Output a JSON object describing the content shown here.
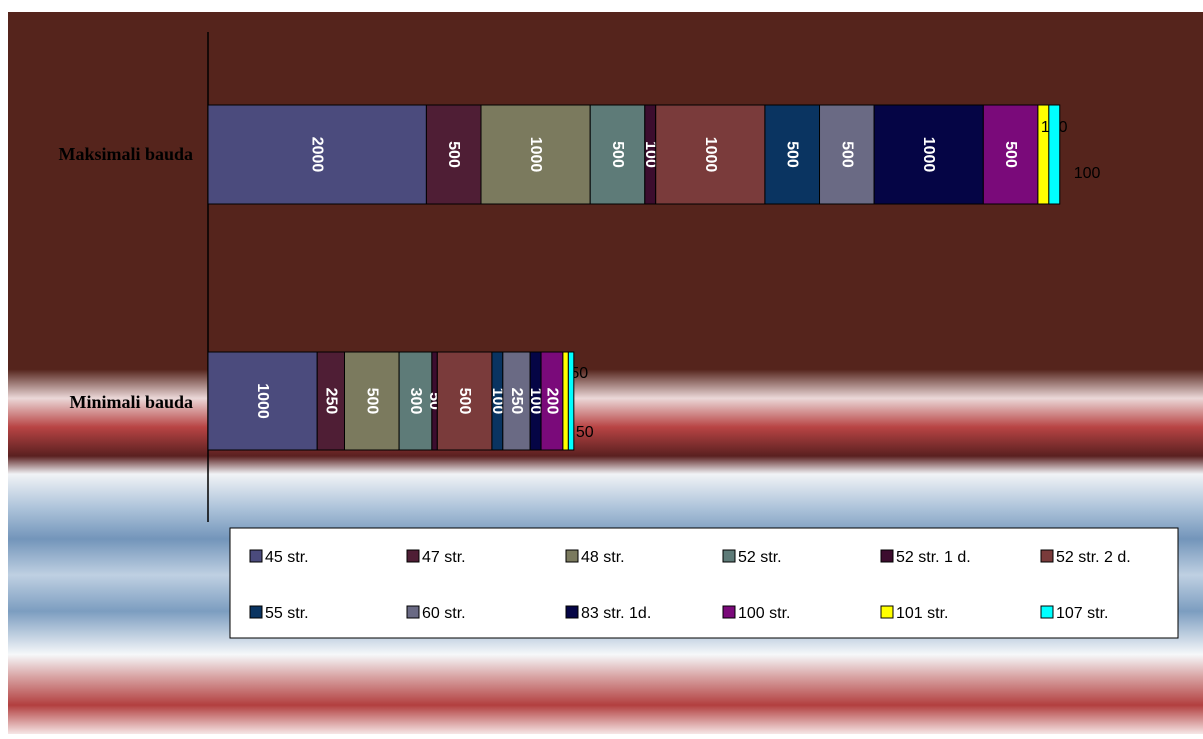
{
  "chart_data": {
    "type": "bar",
    "orientation": "horizontal",
    "stacked": true,
    "categories": [
      "Maksimali bauda",
      "Minimali bauda"
    ],
    "series": [
      {
        "name": "45 str.",
        "values": [
          2000,
          1000
        ],
        "color": "#4B4B7D"
      },
      {
        "name": "47 str.",
        "values": [
          500,
          250
        ],
        "color": "#4F1E35"
      },
      {
        "name": "48 str.",
        "values": [
          1000,
          500
        ],
        "color": "#7B7A5E"
      },
      {
        "name": "52 str.",
        "values": [
          500,
          300
        ],
        "color": "#5E7B78"
      },
      {
        "name": "52 str. 1 d.",
        "values": [
          100,
          50
        ],
        "color": "#3C0D2E"
      },
      {
        "name": "52 str. 2 d.",
        "values": [
          1000,
          500
        ],
        "color": "#7A3B3B"
      },
      {
        "name": "55 str.",
        "values": [
          500,
          100
        ],
        "color": "#0A3461"
      },
      {
        "name": "60 str.",
        "values": [
          500,
          250
        ],
        "color": "#6A6A84"
      },
      {
        "name": "83 str. 1d.",
        "values": [
          1000,
          100
        ],
        "color": "#050545"
      },
      {
        "name": "100 str.",
        "values": [
          500,
          200
        ],
        "color": "#7A0A7A"
      },
      {
        "name": "101 str.",
        "values": [
          100,
          50
        ],
        "color": "#FFFF00"
      },
      {
        "name": "107 str.",
        "values": [
          100,
          50
        ],
        "color": "#00FFFF"
      }
    ],
    "data_labels": [
      [
        "2000",
        "500",
        "1000",
        "500",
        "100",
        "1000",
        "500",
        "500",
        "1000",
        "500",
        "100",
        "100"
      ],
      [
        "1000",
        "250",
        "500",
        "300",
        "50",
        "500",
        "100",
        "250",
        "100",
        "200",
        "50",
        "50"
      ]
    ],
    "legend_position": "bottom",
    "grid": false
  }
}
